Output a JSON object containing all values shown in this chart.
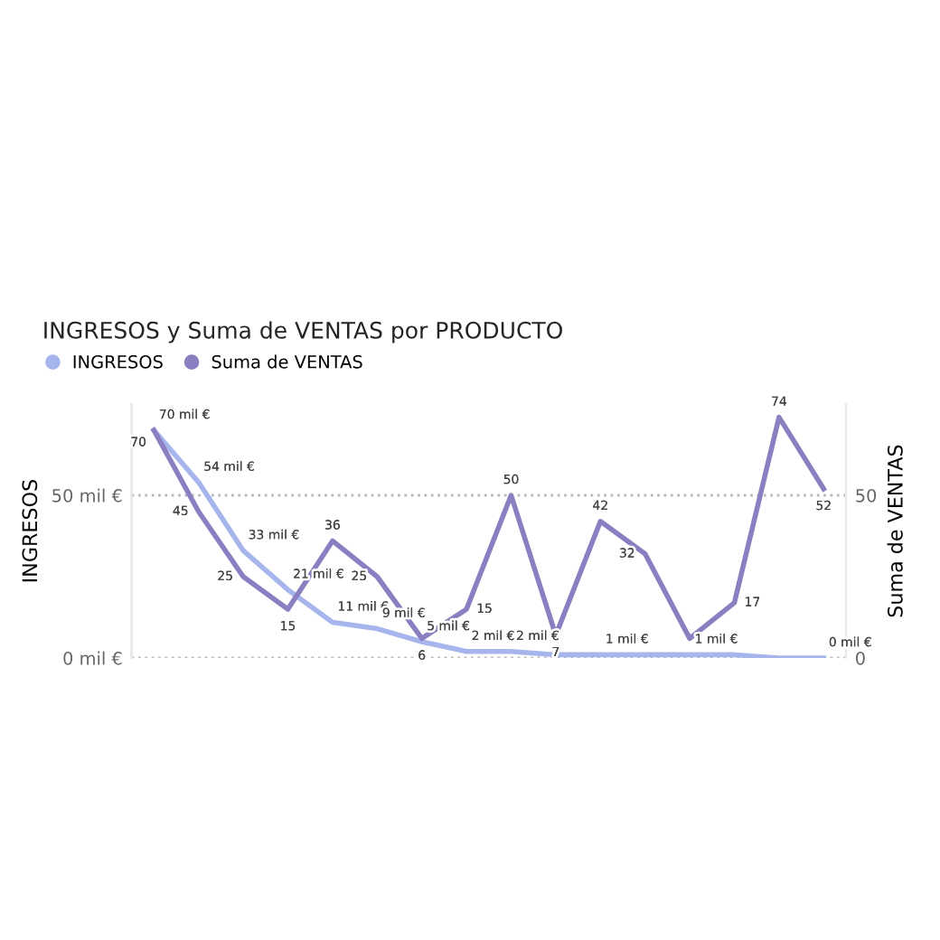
{
  "chart_data": {
    "type": "line",
    "title": "INGRESOS y Suma de VENTAS por PRODUCTO",
    "ylabel": "INGRESOS",
    "y2label": "Suma de VENTAS",
    "categories": [
      null,
      null,
      null,
      null,
      null,
      null,
      null,
      null,
      null,
      null,
      null,
      null,
      null,
      null,
      null,
      null
    ],
    "series": [
      {
        "name": "INGRESOS",
        "color": "#a6b5ec",
        "values": [
          70,
          54,
          33,
          21,
          11,
          9,
          5,
          2,
          2,
          1,
          1,
          1,
          1,
          1,
          0,
          0
        ],
        "value_labels": [
          "70 mil €",
          "54 mil €",
          "33 mil €",
          "21 mil €",
          "11 mil €",
          "9 mil €",
          "5 mil €",
          "2 mil €",
          "2 mil €",
          null,
          "1 mil €",
          null,
          "1 mil €",
          null,
          null,
          "0 mil €"
        ]
      },
      {
        "name": "Suma de VENTAS",
        "color": "#8a7fc0",
        "axis": "y2",
        "values": [
          70,
          45,
          25,
          15,
          36,
          25,
          6,
          15,
          50,
          7,
          42,
          32,
          6,
          17,
          74,
          52
        ],
        "value_labels": [
          "70",
          "45",
          "25",
          "15",
          "36",
          "25",
          "6",
          "15",
          "50",
          "7",
          "42",
          "32",
          null,
          "17",
          "74",
          "52"
        ]
      }
    ],
    "ylim": [
      0,
      78
    ],
    "yticks": [
      {
        "value": 0,
        "label": "0 mil €"
      },
      {
        "value": 50,
        "label": "50 mil €"
      }
    ],
    "y2lim": [
      0,
      78
    ],
    "y2ticks": [
      0,
      50
    ],
    "grid": "y",
    "legend": "top left",
    "marker": "none",
    "line_style": "solid"
  }
}
